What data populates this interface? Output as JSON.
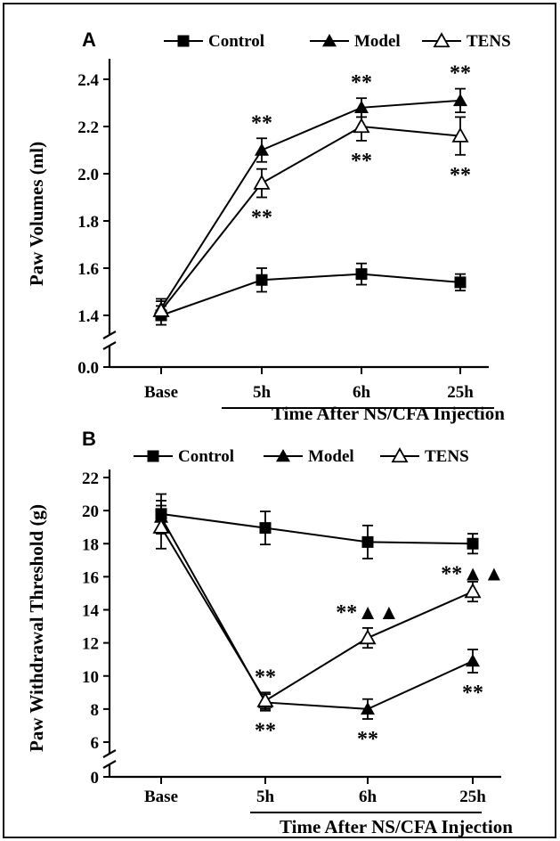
{
  "chart_data": [
    {
      "panel": "A",
      "type": "line",
      "ylabel": "Paw Volumes (ml)",
      "xlabel": "Time After NS/CFA Injection",
      "categories": [
        "Base",
        "5h",
        "6h",
        "25h"
      ],
      "yticks": [
        "0.0",
        "1.4",
        "1.6",
        "1.8",
        "2.0",
        "2.2",
        "2.4"
      ],
      "ylim": [
        1.35,
        2.45
      ],
      "axis_break": true,
      "grid": false,
      "legend": {
        "position": "top",
        "entries": [
          "Control",
          "Model",
          "TENS"
        ]
      },
      "series": [
        {
          "name": "Control",
          "marker": "filled-square",
          "values": [
            1.4,
            1.55,
            1.575,
            1.54
          ],
          "errors": [
            0.04,
            0.05,
            0.045,
            0.035
          ]
        },
        {
          "name": "Model",
          "marker": "filled-triangle",
          "values": [
            1.43,
            2.1,
            2.28,
            2.31
          ],
          "errors": [
            0.04,
            0.05,
            0.04,
            0.05
          ]
        },
        {
          "name": "TENS",
          "marker": "open-triangle",
          "values": [
            1.42,
            1.96,
            2.2,
            2.16
          ],
          "errors": [
            0.04,
            0.06,
            0.06,
            0.08
          ]
        }
      ],
      "annotations": [
        {
          "text": "**",
          "category": "5h",
          "series": "Model",
          "where": "above"
        },
        {
          "text": "**",
          "category": "5h",
          "series": "TENS",
          "where": "below"
        },
        {
          "text": "**",
          "category": "6h",
          "series": "Model",
          "where": "above"
        },
        {
          "text": "**",
          "category": "6h",
          "series": "TENS",
          "where": "below"
        },
        {
          "text": "**",
          "category": "25h",
          "series": "Model",
          "where": "above"
        },
        {
          "text": "**",
          "category": "25h",
          "series": "TENS",
          "where": "below"
        }
      ]
    },
    {
      "panel": "B",
      "type": "line",
      "ylabel": "Paw Withdrawal Threshold (g)",
      "xlabel": "Time After NS/CFA Injection",
      "categories": [
        "Base",
        "5h",
        "6h",
        "25h"
      ],
      "yticks": [
        "0",
        "6",
        "8",
        "10",
        "12",
        "14",
        "16",
        "18",
        "20",
        "22"
      ],
      "ylim": [
        5.5,
        22
      ],
      "axis_break": true,
      "grid": false,
      "legend": {
        "position": "top",
        "entries": [
          "Control",
          "Model",
          "TENS"
        ]
      },
      "series": [
        {
          "name": "Control",
          "marker": "filled-square",
          "values": [
            19.8,
            18.95,
            18.1,
            18.0
          ],
          "errors": [
            1.2,
            1.0,
            1.0,
            0.6
          ]
        },
        {
          "name": "Model",
          "marker": "filled-triangle",
          "values": [
            19.6,
            8.4,
            8.0,
            10.9
          ],
          "errors": [
            1.0,
            0.5,
            0.6,
            0.7
          ]
        },
        {
          "name": "TENS",
          "marker": "open-triangle",
          "values": [
            19.0,
            8.5,
            12.3,
            15.1
          ],
          "errors": [
            1.3,
            0.5,
            0.6,
            0.6
          ]
        }
      ],
      "annotations": [
        {
          "text": "**",
          "category": "5h",
          "series": "TENS",
          "where": "above"
        },
        {
          "text": "**",
          "category": "5h",
          "series": "Model",
          "where": "below"
        },
        {
          "text": "**",
          "category": "6h",
          "series": "Model",
          "where": "below"
        },
        {
          "text": "**▲▲",
          "category": "6h",
          "series": "TENS",
          "where": "above"
        },
        {
          "text": "**▲▲",
          "category": "25h",
          "series": "Control",
          "where": "below"
        },
        {
          "text": "**",
          "category": "25h",
          "series": "Model",
          "where": "below"
        }
      ]
    }
  ]
}
